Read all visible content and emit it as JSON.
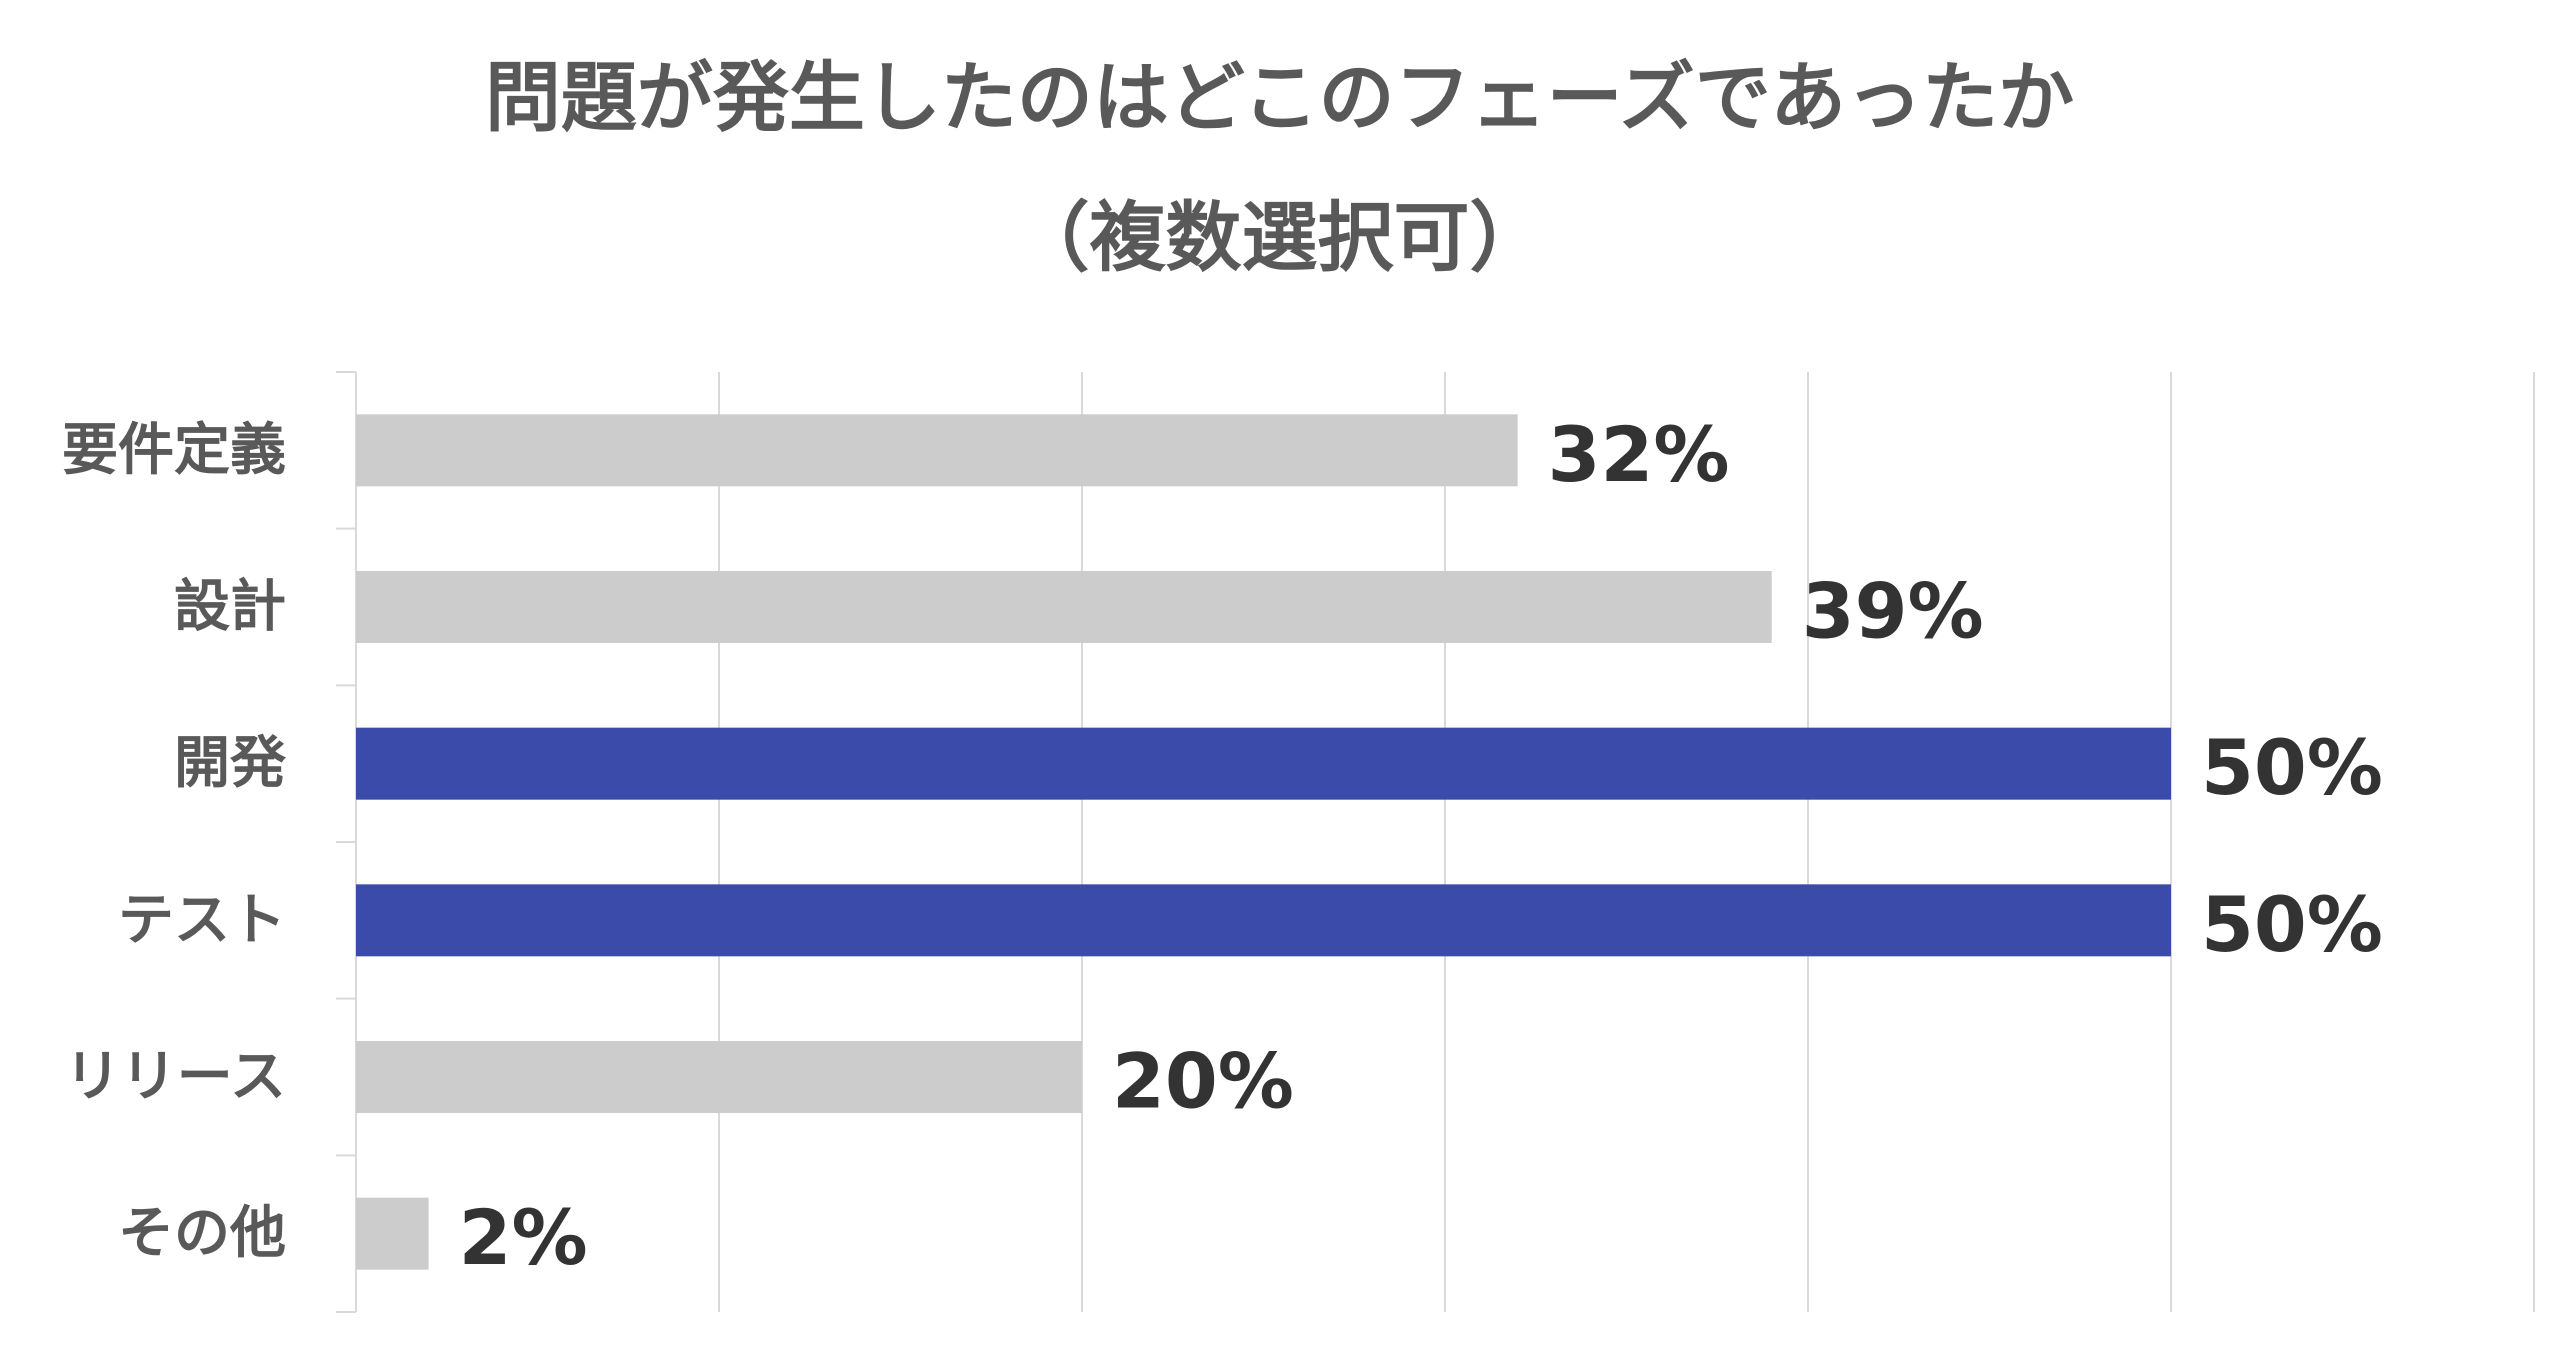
{
  "chart_data": {
    "type": "bar",
    "orientation": "horizontal",
    "title": "問題が発生したのはどこのフェーズであったか",
    "subtitle": "（複数選択可）",
    "categories": [
      "要件定義",
      "設計",
      "開発",
      "テスト",
      "リリース",
      "その他"
    ],
    "values": [
      32,
      39,
      50,
      50,
      20,
      2
    ],
    "value_labels": [
      "32%",
      "39%",
      "50%",
      "50%",
      "20%",
      "2%"
    ],
    "highlight": [
      false,
      false,
      true,
      true,
      false,
      false
    ],
    "xlim": [
      0,
      60
    ],
    "grid": true,
    "legend": "none",
    "xlabel": "",
    "ylabel": ""
  },
  "colors": {
    "bar_default": "#cccccc",
    "bar_highlight": "#3b4baa",
    "gridline": "#d9d9d9",
    "axis_line": "#d9d9d9",
    "category_text": "#595959",
    "value_text": "#333333",
    "title_text": "#595959",
    "background": "#ffffff"
  }
}
